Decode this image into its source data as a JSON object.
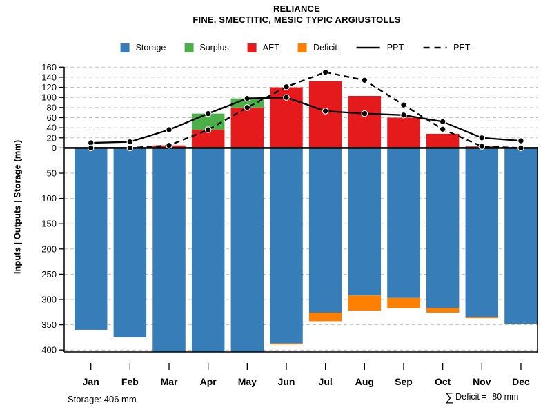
{
  "header": {
    "title": "RELIANCE",
    "subtitle": "FINE, SMECTITIC, MESIC TYPIC ARGIUSTOLLS"
  },
  "legend": {
    "items": [
      {
        "label": "Storage",
        "swatch": "square",
        "color": "#377EB8"
      },
      {
        "label": "Surplus",
        "swatch": "square",
        "color": "#4DAF4A"
      },
      {
        "label": "AET",
        "swatch": "square",
        "color": "#E41A1C"
      },
      {
        "label": "Deficit",
        "swatch": "square",
        "color": "#FF7F00"
      },
      {
        "label": "PPT",
        "swatch": "line-solid",
        "color": "#000000"
      },
      {
        "label": "PET",
        "swatch": "line-dashed",
        "color": "#000000"
      }
    ]
  },
  "chart_data": {
    "type": "bar",
    "title": "RELIANCE",
    "subtitle": "FINE, SMECTITIC, MESIC TYPIC ARGIUSTOLLS",
    "ylabel": "Inputs | Outputs | Storage  (mm)",
    "categories": [
      "Jan",
      "Feb",
      "Mar",
      "Apr",
      "May",
      "Jun",
      "Jul",
      "Aug",
      "Sep",
      "Oct",
      "Nov",
      "Dec"
    ],
    "series": [
      {
        "name": "Storage",
        "type": "bar",
        "direction": "down",
        "color": "#377EB8",
        "values": [
          360,
          375,
          406,
          406,
          406,
          387,
          326,
          292,
          297,
          317,
          335,
          348
        ]
      },
      {
        "name": "Deficit",
        "type": "bar",
        "direction": "down",
        "color": "#FF7F00",
        "values": [
          0,
          0,
          0,
          0,
          0,
          2,
          17,
          30,
          20,
          9,
          2,
          0
        ]
      },
      {
        "name": "AET",
        "type": "bar",
        "direction": "up",
        "color": "#E41A1C",
        "values": [
          0,
          0,
          5,
          36,
          80,
          120,
          132,
          103,
          60,
          28,
          3,
          0
        ]
      },
      {
        "name": "Surplus",
        "type": "bar",
        "direction": "up",
        "color": "#4DAF4A",
        "values": [
          0,
          0,
          0,
          32,
          18,
          0,
          0,
          0,
          0,
          0,
          0,
          0
        ]
      },
      {
        "name": "PPT",
        "type": "line",
        "style": "solid",
        "color": "#000000",
        "values": [
          10,
          12,
          36,
          68,
          98,
          100,
          73,
          68,
          65,
          52,
          20,
          14
        ]
      },
      {
        "name": "PET",
        "type": "line",
        "style": "dashed",
        "color": "#000000",
        "values": [
          0,
          0,
          5,
          36,
          80,
          121,
          150,
          134,
          85,
          37,
          3,
          0
        ]
      }
    ],
    "y_axis": {
      "upper_ticks": [
        0,
        20,
        40,
        60,
        80,
        100,
        120,
        140,
        160
      ],
      "lower_ticks": [
        50,
        100,
        150,
        200,
        250,
        300,
        350,
        400
      ],
      "upper_max": 160,
      "lower_max": 405
    },
    "grid": true,
    "legend_position": "top",
    "grid_color": "#c3c3c3",
    "line_color": "#000000"
  },
  "footer": {
    "storage_note": "Storage: 406 mm",
    "sigma": "∑",
    "deficit_note": "Deficit = -80 mm"
  }
}
